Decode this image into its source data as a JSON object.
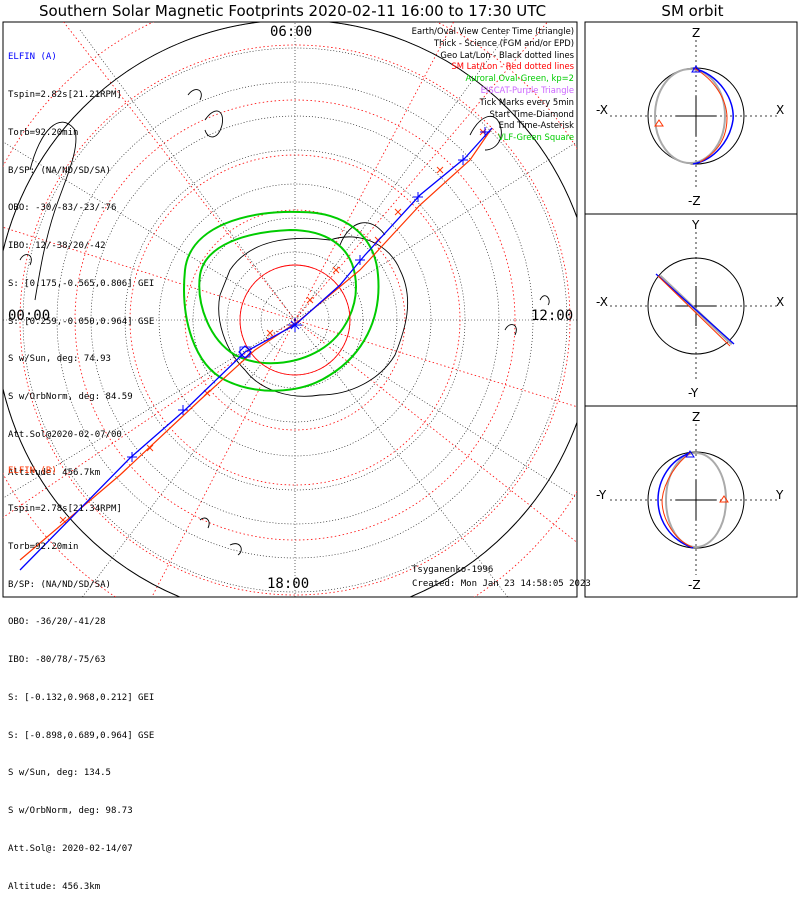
{
  "title": "Southern Solar Magnetic Footprints 2020-02-11 16:00 to 17:30 UTC",
  "orbit_title": "SM orbit",
  "clock_labels": {
    "top": "06:00",
    "left": "00:00",
    "right": "12:00",
    "bottom": "18:00"
  },
  "elfin_a": {
    "color": "#0000ff",
    "lines": [
      "ELFIN (A)",
      "Tspin=2.82s[21.21RPM]",
      "Torb=92.20min",
      "B/SP: (NA/ND/SD/SA)",
      "OBO: -30/-83/-23/-76",
      "IBO: 12/-38/20/-42",
      "S: [0.175,-0.565,0.806] GEI",
      "S: [0.259,-0.050,0.964] GSE",
      "S w/Sun, deg: 74.93",
      "S w/OrbNorm, deg: 84.59",
      "Att.Sol@2020-02-07/00",
      "Altitude: 456.7km"
    ]
  },
  "elfin_b": {
    "color": "#ff3300",
    "lines": [
      "ELFIN (B)",
      "Tspin=2.78s[21.34RPM]",
      "Torb=92.20min",
      "B/SP: (NA/ND/SD/SA)",
      "OBO: -36/20/-41/28",
      "IBO: -80/78/-75/63",
      "S: [-0.132,0.968,0.212] GEI",
      "S: [-0.898,0.689,0.964] GSE",
      "S w/Sun, deg: 134.5",
      "S w/OrbNorm, deg: 98.73",
      "Att.Sol@: 2020-02-14/07",
      "Altitude: 456.3km"
    ]
  },
  "legend": [
    {
      "text": "Earth/Oval View Center Time (triangle)",
      "color": "#000000"
    },
    {
      "text": "Thick - Science (FGM and/or EPD)",
      "color": "#000000"
    },
    {
      "text": "Geo Lat/Lon - Black dotted lines",
      "color": "#000000"
    },
    {
      "text": "SM Lat/Lon - Red dotted lines",
      "color": "#ff0000"
    },
    {
      "text": "Auroral Oval-Green, kp=2",
      "color": "#00cc00"
    },
    {
      "text": "EISCAT-Purple Triangle",
      "color": "#cc66ff"
    },
    {
      "text": "Tick Marks every 5min",
      "color": "#000000"
    },
    {
      "text": "Start Time-Diamond",
      "color": "#000000"
    },
    {
      "text": "End Time-Asterisk",
      "color": "#000000"
    },
    {
      "text": "VLF-Green Square",
      "color": "#00cc00"
    }
  ],
  "footer": {
    "model": "Tsyganenko-1996",
    "created": "Created: Mon Jan 23 14:58:05 2023"
  },
  "orbit_panels": [
    {
      "top": "Z",
      "bottom": "-Z",
      "left": "-X",
      "right": "X"
    },
    {
      "top": "Y",
      "bottom": "-Y",
      "left": "-X",
      "right": "X"
    },
    {
      "top": "Z",
      "bottom": "-Z",
      "left": "-Y",
      "right": "Y"
    }
  ],
  "colors": {
    "trace_a": "#0000ff",
    "trace_b": "#ff3300",
    "oval": "#00cc00",
    "sm_grid": "#ff0000",
    "geo_grid": "#000000",
    "earth_outline": "#999999"
  }
}
